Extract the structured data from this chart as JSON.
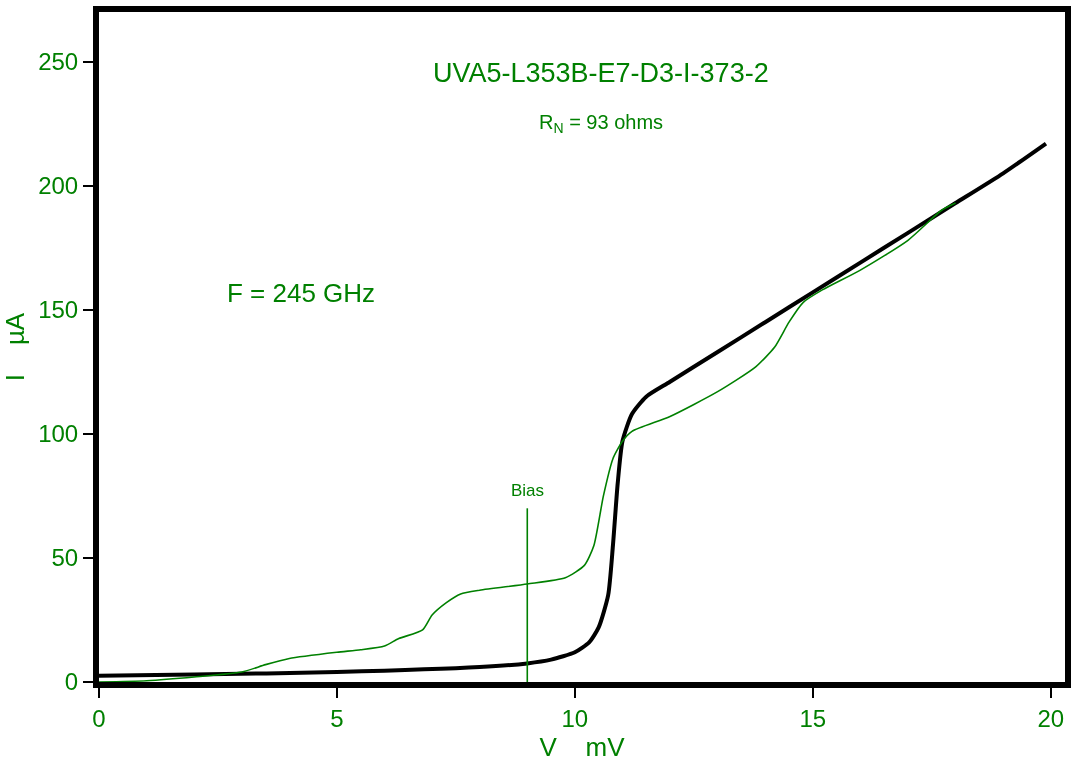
{
  "chart_data": {
    "type": "line",
    "title": "UVA5-L353B-E7-D3-I-373-2",
    "subtitle": "R$_{N}$ = 93 ohms",
    "xlabel": "V    mV",
    "ylabel": "I    µA",
    "annotations": [
      "F = 245 GHz",
      {
        "text": "Bias",
        "x": 9,
        "y": 70
      }
    ],
    "xlim": [
      0,
      20.3
    ],
    "ylim": [
      0,
      270
    ],
    "xticks": [
      0,
      5,
      10,
      15,
      20
    ],
    "yticks": [
      0,
      50,
      100,
      150,
      200,
      250
    ],
    "marker": "none",
    "line_style": "solid",
    "series": [
      {
        "color": "#000000",
        "x": [
          0,
          2,
          5,
          8,
          9,
          9.5,
          10,
          10.3,
          10.5,
          10.7,
          10.8,
          10.9,
          11.0,
          11.2,
          11.5,
          12,
          13,
          14,
          15,
          16,
          17,
          17.5,
          18,
          19,
          19.9
        ],
        "values": [
          2.5,
          3,
          4,
          6,
          7.5,
          9,
          12,
          16,
          22,
          35,
          55,
          80,
          97,
          108,
          115,
          121,
          133,
          145,
          157,
          169,
          181,
          187,
          193,
          205,
          217
        ]
      },
      {
        "color": "#008000",
        "x": [
          0,
          1,
          2,
          3,
          3.5,
          4,
          5,
          5.5,
          6,
          6.3,
          6.8,
          7,
          7.3,
          7.6,
          8,
          9,
          9.8,
          10.2,
          10.4,
          10.6,
          10.8,
          11.0,
          11.2,
          12,
          13,
          13.8,
          14.2,
          14.5,
          14.8,
          15.2,
          16,
          17,
          17.7,
          18
        ],
        "values": [
          0,
          0.5,
          2,
          4,
          7,
          9.5,
          12,
          13,
          14.5,
          17.5,
          21,
          27,
          32,
          35.5,
          37,
          39.5,
          42,
          47,
          55,
          75,
          90,
          97,
          101,
          107,
          117,
          127,
          135,
          145,
          153,
          158,
          166,
          178,
          190,
          193
        ]
      },
      {
        "color": "#008000",
        "x": [
          9,
          9
        ],
        "values": [
          0,
          70
        ]
      }
    ]
  }
}
